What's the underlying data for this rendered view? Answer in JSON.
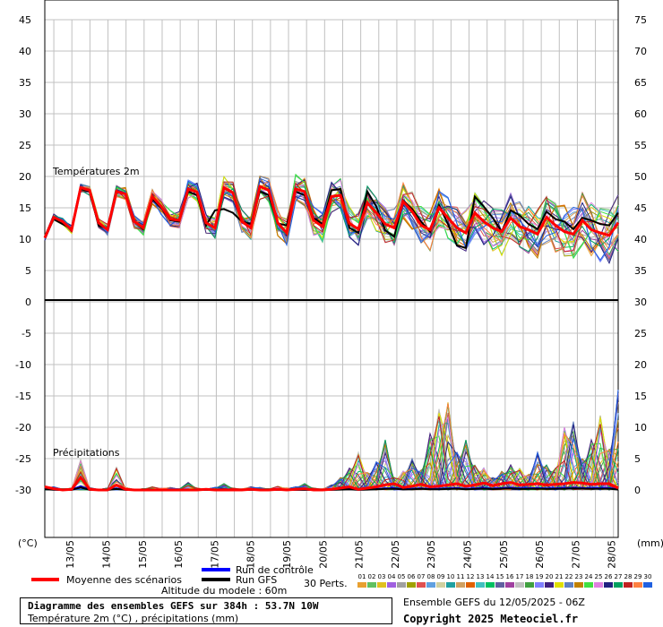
{
  "chart_data": {
    "type": "line",
    "panels": [
      "temperature",
      "precipitation"
    ],
    "left_axis": {
      "unit": "(°C)",
      "ticks": [
        45,
        40,
        35,
        30,
        25,
        20,
        15,
        10,
        5,
        0,
        -5,
        -10,
        -15,
        -20,
        -25,
        -30
      ]
    },
    "right_axis": {
      "unit": "(mm)",
      "ticks": [
        75,
        70,
        65,
        60,
        55,
        50,
        45,
        40,
        35,
        30,
        25,
        20,
        15,
        10,
        5,
        0
      ]
    },
    "x_labels": [
      "13/05",
      "14/05",
      "15/05",
      "16/05",
      "17/05",
      "18/05",
      "19/05",
      "20/05",
      "21/05",
      "22/05",
      "23/05",
      "24/05",
      "25/05",
      "26/05",
      "27/05",
      "28/05"
    ],
    "temperature_panel_label": "Températures 2m",
    "precip_panel_label": "Précipitations",
    "temperature_mean": [
      10.2,
      13.5,
      12.8,
      11.5,
      18.2,
      17.8,
      12.6,
      11.5,
      17.6,
      17.2,
      12.8,
      11.8,
      16.8,
      15.2,
      13.2,
      13.0,
      18.0,
      17.5,
      12.6,
      11.8,
      18.2,
      17.4,
      12.8,
      11.8,
      18.4,
      17.8,
      12.6,
      11.0,
      18.0,
      17.6,
      13.0,
      12.0,
      16.8,
      17.0,
      12.5,
      11.6,
      15.8,
      14.2,
      12.4,
      11.8,
      16.0,
      14.4,
      12.2,
      11.5,
      15.0,
      13.4,
      11.8,
      11.0,
      14.2,
      12.8,
      11.8,
      11.2,
      13.4,
      12.0,
      11.5,
      10.8,
      13.5,
      12.2,
      11.2,
      10.8,
      13.0,
      11.5,
      11.0,
      10.6,
      12.6
    ],
    "temperature_gfs": [
      10.4,
      13.2,
      12.4,
      11.6,
      18.0,
      17.6,
      12.2,
      11.6,
      17.6,
      17.2,
      12.8,
      11.6,
      16.4,
      15.0,
      13.0,
      12.8,
      17.6,
      17.0,
      12.2,
      14.6,
      14.8,
      14.2,
      12.8,
      12.4,
      17.6,
      17.0,
      12.5,
      12.2,
      17.6,
      17.0,
      13.4,
      12.4,
      17.8,
      18.0,
      11.8,
      11.0,
      17.6,
      15.2,
      11.4,
      10.4,
      16.2,
      14.8,
      12.8,
      11.2,
      15.4,
      12.4,
      9.0,
      8.6,
      16.8,
      15.2,
      13.4,
      11.2,
      14.6,
      13.8,
      12.4,
      11.6,
      14.4,
      13.2,
      12.8,
      11.6,
      13.4,
      13.0,
      12.4,
      12.2,
      14.2
    ],
    "precip_mean": [
      0.5,
      0.2,
      0,
      0.1,
      2,
      0.1,
      0,
      0,
      0.8,
      0.1,
      0,
      0,
      0,
      0,
      0,
      0,
      0,
      0,
      0.1,
      0,
      0,
      0,
      0,
      0.1,
      0,
      0,
      0.1,
      0,
      0.1,
      0.2,
      0,
      0,
      0.1,
      0.3,
      0.5,
      0.1,
      0.3,
      0.5,
      0.8,
      1.0,
      0.4,
      0.6,
      0.9,
      0.5,
      0.6,
      0.8,
      1.0,
      0.6,
      0.8,
      1.1,
      0.7,
      1.0,
      1.2,
      0.8,
      0.9,
      1.0,
      0.8,
      0.9,
      1.0,
      1.2,
      1.1,
      0.9,
      1.0,
      1.0,
      0.3
    ],
    "precip_max": [
      0.6,
      0.5,
      0.2,
      0.3,
      4.8,
      0.4,
      0.1,
      0.3,
      3.6,
      0.4,
      0.1,
      0.2,
      0.5,
      0.3,
      0.4,
      0.2,
      1.2,
      0.3,
      0.2,
      0.4,
      1.0,
      0.3,
      0.2,
      0.5,
      0.4,
      0.2,
      0.6,
      0.3,
      0.5,
      1.0,
      0.3,
      0.2,
      0.8,
      2.0,
      3.5,
      6.0,
      2.8,
      4.5,
      8.0,
      2.0,
      3.0,
      5.0,
      3.2,
      9.0,
      13.0,
      14.0,
      6.0,
      8.0,
      4.0,
      3.5,
      2.0,
      3.0,
      4.0,
      3.5,
      2.5,
      6.0,
      4.0,
      3.5,
      10.0,
      11.0,
      5.0,
      8.0,
      12.0,
      6.5,
      16.0
    ],
    "legend": {
      "mean": "Moyenne des scénarios",
      "control": "Run de contrôle",
      "gfs": "Run GFS",
      "perts_label": "30 Perts.",
      "pert_numbers": [
        "01",
        "02",
        "03",
        "04",
        "05",
        "06",
        "07",
        "08",
        "09",
        "10",
        "11",
        "12",
        "13",
        "14",
        "15",
        "16",
        "17",
        "18",
        "19",
        "20",
        "21",
        "22",
        "23",
        "24",
        "25",
        "26",
        "27",
        "28",
        "29",
        "30"
      ],
      "pert_colors": [
        "#e8a030",
        "#60c060",
        "#e0c020",
        "#a060e0",
        "#a0a0a0",
        "#a0a000",
        "#e05050",
        "#60a0e0",
        "#d0d0a0",
        "#20a0a0",
        "#d0a060",
        "#e06000",
        "#40c0c0",
        "#00c060",
        "#6060a0",
        "#a040a0",
        "#c0c0c0",
        "#40a040",
        "#8080ff",
        "#402080",
        "#e0e000",
        "#6080c0",
        "#c08000",
        "#40e040",
        "#e080e0",
        "#202080",
        "#00a060",
        "#c02020",
        "#ff8040",
        "#2060e0"
      ],
      "colors": {
        "mean": "#ff0000",
        "control": "#0000ff",
        "gfs": "#000000"
      }
    },
    "altitude": "Altitude du modele : 60m",
    "title": "Diagramme des ensembles GEFS sur 384h : 53.7N 10W",
    "subtitle": "Température 2m (°C) , précipitations (mm)",
    "ensemble_run": "Ensemble GEFS du 12/05/2025 - 06Z",
    "copyright": "Copyright 2025 Meteociel.fr",
    "grid": true
  }
}
